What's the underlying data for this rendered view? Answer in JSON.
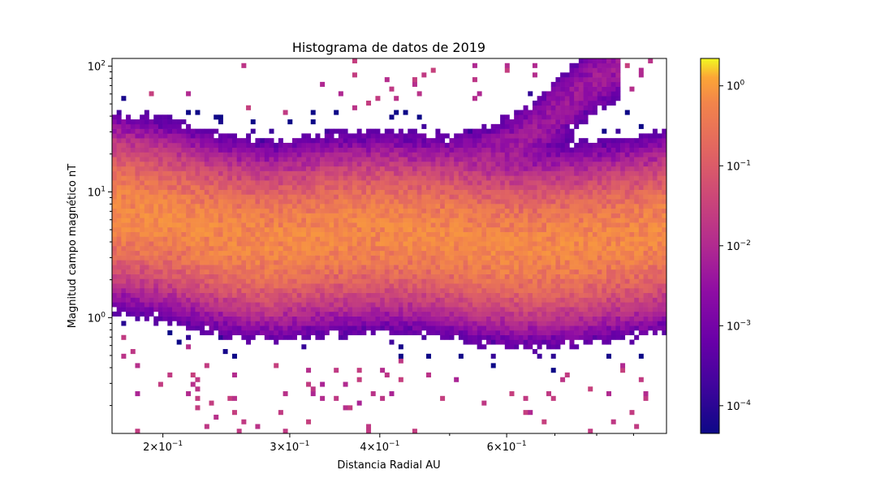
{
  "chart_data": {
    "type": "heatmap",
    "title": "Histograma de datos de 2019",
    "xlabel": "Distancia Radial AU",
    "ylabel": "Magnitud campo magnético nT",
    "xscale": "log",
    "yscale": "log",
    "xlim": [
      0.17,
      1.0
    ],
    "ylim": [
      0.12,
      115
    ],
    "x_ticks": [
      {
        "value": 0.2,
        "mantissa": "2",
        "exp": "−1"
      },
      {
        "value": 0.3,
        "mantissa": "3",
        "exp": "−1"
      },
      {
        "value": 0.4,
        "mantissa": "4",
        "exp": "−1"
      },
      {
        "value": 0.6,
        "mantissa": "6",
        "exp": "−1"
      }
    ],
    "y_ticks": [
      {
        "value": 1,
        "mantissa": "10",
        "exp": "0"
      },
      {
        "value": 10,
        "mantissa": "10",
        "exp": "1"
      },
      {
        "value": 100,
        "mantissa": "10",
        "exp": "2"
      }
    ],
    "colorbar": {
      "colormap": "plasma",
      "scale": "log",
      "range": [
        4.5e-05,
        2.2
      ],
      "ticks": [
        {
          "value": 0.0001,
          "mantissa": "10",
          "exp": "−4"
        },
        {
          "value": 0.001,
          "mantissa": "10",
          "exp": "−3"
        },
        {
          "value": 0.01,
          "mantissa": "10",
          "exp": "−2"
        },
        {
          "value": 0.1,
          "mantissa": "10",
          "exp": "−1"
        },
        {
          "value": 1,
          "mantissa": "10",
          "exp": "0"
        }
      ]
    },
    "ridges": [
      {
        "x": [
          0.17,
          0.2,
          0.24,
          0.28,
          0.33,
          0.4,
          0.48,
          0.56,
          0.65,
          0.75,
          0.85,
          0.95,
          1.0
        ],
        "y": [
          7.0,
          6.0,
          4.6,
          4.0,
          4.5,
          4.8,
          4.5,
          3.8,
          3.6,
          3.8,
          4.2,
          4.5,
          5.0
        ],
        "density": 0.25
      },
      {
        "x": [
          0.5,
          0.56,
          0.62,
          0.68,
          0.74,
          0.8,
          0.86
        ],
        "y": [
          14,
          18,
          24,
          36,
          55,
          80,
          95
        ],
        "density": 0.003
      }
    ]
  }
}
